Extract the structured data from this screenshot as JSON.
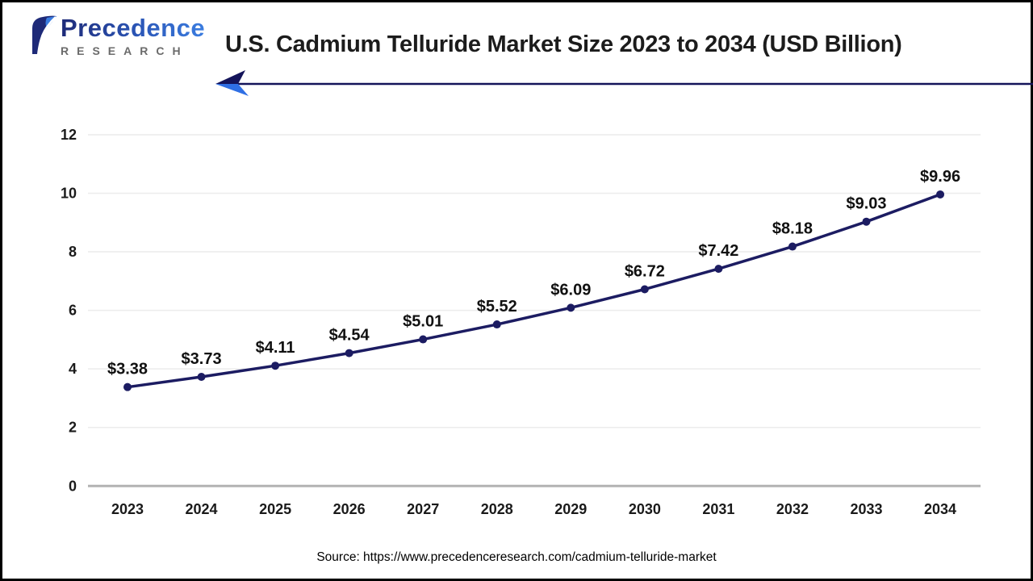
{
  "logo": {
    "brand": "Precedence",
    "subtitle": "RESEARCH"
  },
  "header": {
    "title": "U.S. Cadmium Telluride Market Size 2023 to 2034 (USD Billion)"
  },
  "footer": {
    "source": "Source: https://www.precedenceresearch.com/cadmium-telluride-market"
  },
  "colors": {
    "line": "#1c1c62",
    "marker": "#1c1c62",
    "grid": "#ececec",
    "zero_axis": "#b3b3b3",
    "tick_label": "#1a1a1a",
    "data_label": "#111111",
    "title": "#1c1c1c",
    "arrow_dark": "#14145a",
    "arrow_blue": "#2f6fe4",
    "brand_dark": "#1e2a78",
    "brand_light": "#3b7de0",
    "research_gray": "#6b6b6b"
  },
  "chart_data": {
    "type": "line",
    "x": [
      "2023",
      "2024",
      "2025",
      "2026",
      "2027",
      "2028",
      "2029",
      "2030",
      "2031",
      "2032",
      "2033",
      "2034"
    ],
    "values": [
      3.38,
      3.73,
      4.11,
      4.54,
      5.01,
      5.52,
      6.09,
      6.72,
      7.42,
      8.18,
      9.03,
      9.96
    ],
    "data_labels": [
      "$3.38",
      "$3.73",
      "$4.11",
      "$4.54",
      "$5.01",
      "$5.52",
      "$6.09",
      "$6.72",
      "$7.42",
      "$8.18",
      "$9.03",
      "$9.96"
    ],
    "title": "U.S. Cadmium Telluride Market Size 2023 to 2034 (USD Billion)",
    "xlabel": "",
    "ylabel": "",
    "unit": "USD Billion",
    "ylim": [
      0,
      12
    ],
    "yticks": [
      0,
      2,
      4,
      6,
      8,
      10,
      12
    ],
    "grid": true,
    "legend": false
  }
}
